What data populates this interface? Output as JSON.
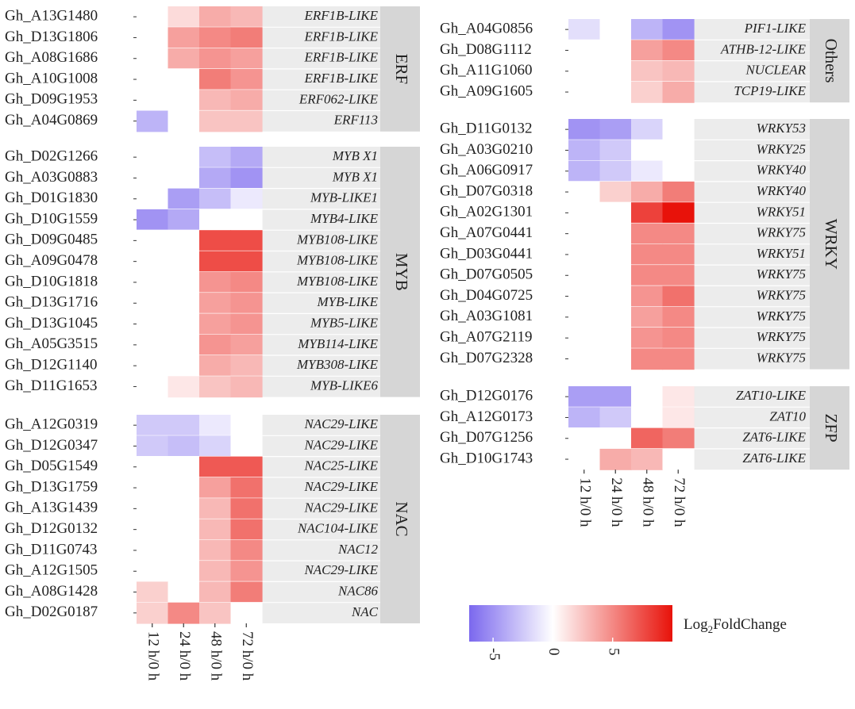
{
  "chart_data": {
    "type": "heatmap",
    "columns": [
      "12 h/0 h",
      "24 h/0 h",
      "48 h/0 h",
      "72 h/0 h"
    ],
    "panels": [
      {
        "family": "ERF",
        "rows": [
          {
            "gene": "Gh_A13G1480",
            "desc": "ERF1B-LIKE",
            "values": [
              0,
              1.5,
              3.5,
              3.0
            ]
          },
          {
            "gene": "Gh_D13G1806",
            "desc": "ERF1B-LIKE",
            "values": [
              0,
              4.0,
              5.0,
              5.5
            ]
          },
          {
            "gene": "Gh_A08G1686",
            "desc": "ERF1B-LIKE",
            "values": [
              0,
              3.5,
              4.5,
              4.0
            ]
          },
          {
            "gene": "Gh_A10G1008",
            "desc": "ERF1B-LIKE",
            "values": [
              0,
              0,
              5.5,
              4.5
            ]
          },
          {
            "gene": "Gh_D09G1953",
            "desc": "ERF062-LIKE",
            "values": [
              0,
              0,
              3.0,
              3.5
            ]
          },
          {
            "gene": "Gh_A04G0869",
            "desc": "ERF113",
            "values": [
              -3.5,
              0,
              2.5,
              2.5
            ]
          }
        ]
      },
      {
        "family": "MYB",
        "rows": [
          {
            "gene": "Gh_D02G1266",
            "desc": "MYB X1",
            "values": [
              0,
              0,
              -3.0,
              -4.0
            ]
          },
          {
            "gene": "Gh_A03G0883",
            "desc": "MYB X1",
            "values": [
              0,
              0,
              -4.0,
              -5.0
            ]
          },
          {
            "gene": "Gh_D01G1830",
            "desc": "MYB-LIKE1",
            "values": [
              0,
              -4.5,
              -3.0,
              -1.0
            ]
          },
          {
            "gene": "Gh_D10G1559",
            "desc": "MYB4-LIKE",
            "values": [
              -5.0,
              -4.0,
              0,
              0
            ]
          },
          {
            "gene": "Gh_D09G0485",
            "desc": "MYB108-LIKE",
            "values": [
              0,
              0,
              7.5,
              7.5
            ]
          },
          {
            "gene": "Gh_A09G0478",
            "desc": "MYB108-LIKE",
            "values": [
              0,
              0,
              7.5,
              7.5
            ]
          },
          {
            "gene": "Gh_D10G1818",
            "desc": "MYB108-LIKE",
            "values": [
              0,
              0,
              4.5,
              5.0
            ]
          },
          {
            "gene": "Gh_D13G1716",
            "desc": "MYB-LIKE",
            "values": [
              0,
              0,
              4.0,
              4.5
            ]
          },
          {
            "gene": "Gh_D13G1045",
            "desc": "MYB5-LIKE",
            "values": [
              0,
              0,
              4.0,
              4.5
            ]
          },
          {
            "gene": "Gh_A05G3515",
            "desc": "MYB114-LIKE",
            "values": [
              0,
              0,
              4.5,
              4.0
            ]
          },
          {
            "gene": "Gh_D12G1140",
            "desc": "MYB308-LIKE",
            "values": [
              0,
              0,
              3.5,
              3.0
            ]
          },
          {
            "gene": "Gh_D11G1653",
            "desc": "MYB-LIKE6",
            "values": [
              0,
              1.0,
              2.5,
              3.0
            ]
          }
        ]
      },
      {
        "family": "NAC",
        "rows": [
          {
            "gene": "Gh_A12G0319",
            "desc": "NAC29-LIKE",
            "values": [
              -2.5,
              -2.5,
              -1.0,
              0
            ]
          },
          {
            "gene": "Gh_D12G0347",
            "desc": "NAC29-LIKE",
            "values": [
              -2.5,
              -3.0,
              -2.0,
              0
            ]
          },
          {
            "gene": "Gh_D05G1549",
            "desc": "NAC25-LIKE",
            "values": [
              0,
              0,
              7.0,
              7.0
            ]
          },
          {
            "gene": "Gh_D13G1759",
            "desc": "NAC29-LIKE",
            "values": [
              0,
              0,
              4.0,
              6.0
            ]
          },
          {
            "gene": "Gh_A13G1439",
            "desc": "NAC29-LIKE",
            "values": [
              0,
              0,
              3.0,
              6.0
            ]
          },
          {
            "gene": "Gh_D12G0132",
            "desc": "NAC104-LIKE",
            "values": [
              0,
              0,
              3.0,
              6.0
            ]
          },
          {
            "gene": "Gh_D11G0743",
            "desc": "NAC12",
            "values": [
              0,
              0,
              3.0,
              5.0
            ]
          },
          {
            "gene": "Gh_A12G1505",
            "desc": "NAC29-LIKE",
            "values": [
              0,
              0,
              3.0,
              4.5
            ]
          },
          {
            "gene": "Gh_A08G1428",
            "desc": "NAC86",
            "values": [
              2.0,
              0,
              3.0,
              5.5
            ]
          },
          {
            "gene": "Gh_D02G0187",
            "desc": "NAC",
            "values": [
              2.0,
              5.0,
              2.5,
              0
            ]
          }
        ]
      },
      {
        "family": "Others",
        "rows": [
          {
            "gene": "Gh_A04G0856",
            "desc": "PIF1-LIKE",
            "values": [
              -1.5,
              0,
              -3.5,
              -5.0
            ]
          },
          {
            "gene": "Gh_D08G1112",
            "desc": "ATHB-12-LIKE",
            "values": [
              0,
              0,
              4.0,
              5.0
            ]
          },
          {
            "gene": "Gh_A11G1060",
            "desc": "NUCLEAR",
            "values": [
              0,
              0,
              2.5,
              3.0
            ]
          },
          {
            "gene": "Gh_A09G1605",
            "desc": "TCP19-LIKE",
            "values": [
              0,
              0,
              2.0,
              3.5
            ]
          }
        ]
      },
      {
        "family": "WRKY",
        "rows": [
          {
            "gene": "Gh_D11G0132",
            "desc": "WRKY53",
            "values": [
              -5.0,
              -4.5,
              -2.0,
              0
            ]
          },
          {
            "gene": "Gh_A03G0210",
            "desc": "WRKY25",
            "values": [
              -3.5,
              -2.5,
              0,
              0
            ]
          },
          {
            "gene": "Gh_A06G0917",
            "desc": "WRKY40",
            "values": [
              -3.5,
              -2.5,
              -1.0,
              0
            ]
          },
          {
            "gene": "Gh_D07G0318",
            "desc": "WRKY40",
            "values": [
              0,
              2.0,
              3.5,
              5.5
            ]
          },
          {
            "gene": "Gh_A02G1301",
            "desc": "WRKY51",
            "values": [
              0,
              0,
              8.0,
              10.0
            ]
          },
          {
            "gene": "Gh_A07G0441",
            "desc": "WRKY75",
            "values": [
              0,
              0,
              5.0,
              5.0
            ]
          },
          {
            "gene": "Gh_D03G0441",
            "desc": "WRKY51",
            "values": [
              0,
              0,
              5.0,
              5.0
            ]
          },
          {
            "gene": "Gh_D07G0505",
            "desc": "WRKY75",
            "values": [
              0,
              0,
              5.0,
              5.0
            ]
          },
          {
            "gene": "Gh_D04G0725",
            "desc": "WRKY75",
            "values": [
              0,
              0,
              4.5,
              6.0
            ]
          },
          {
            "gene": "Gh_A03G1081",
            "desc": "WRKY75",
            "values": [
              0,
              0,
              4.0,
              5.0
            ]
          },
          {
            "gene": "Gh_A07G2119",
            "desc": "WRKY75",
            "values": [
              0,
              0,
              4.5,
              5.0
            ]
          },
          {
            "gene": "Gh_D07G2328",
            "desc": "WRKY75",
            "values": [
              0,
              0,
              5.0,
              5.0
            ]
          }
        ]
      },
      {
        "family": "ZFP",
        "rows": [
          {
            "gene": "Gh_D12G0176",
            "desc": "ZAT10-LIKE",
            "values": [
              -4.5,
              -4.5,
              0,
              1.0
            ]
          },
          {
            "gene": "Gh_A12G0173",
            "desc": "ZAT10",
            "values": [
              -3.5,
              -2.5,
              0,
              1.0
            ]
          },
          {
            "gene": "Gh_D07G1256",
            "desc": "ZAT6-LIKE",
            "values": [
              0,
              0,
              6.5,
              5.5
            ]
          },
          {
            "gene": "Gh_D10G1743",
            "desc": "ZAT6-LIKE",
            "values": [
              0,
              3.5,
              3.0,
              0
            ]
          }
        ]
      }
    ],
    "legend": {
      "title_main": "Log",
      "title_sub": "2",
      "title_rest": "FoldChange",
      "ticks": [
        -5,
        0,
        5
      ],
      "range": [
        -7,
        10
      ],
      "colors": {
        "low": "#7b68ee",
        "mid": "#ffffff",
        "high": "#e8120a"
      }
    },
    "style": {
      "strip_color": "#d6d6d6",
      "row_band_color": "#ececec"
    }
  }
}
